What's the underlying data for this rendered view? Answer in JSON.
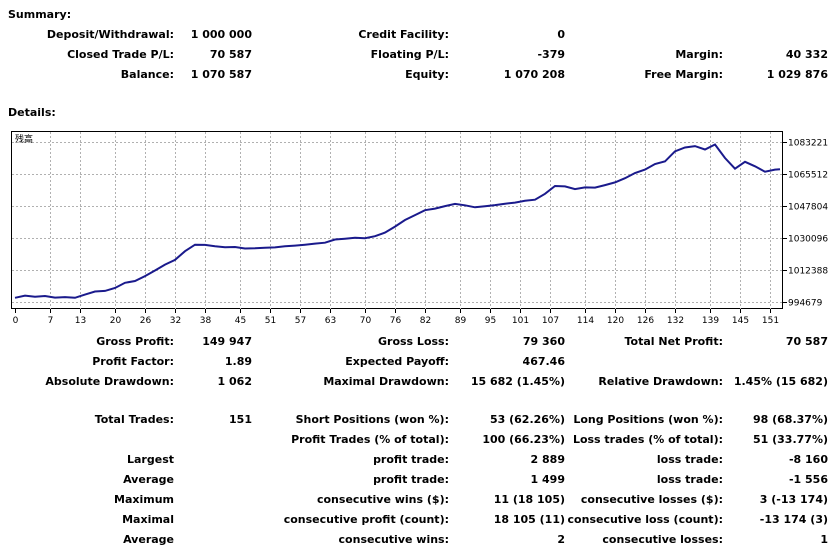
{
  "summary": {
    "title": "Summary:",
    "rows": [
      [
        {
          "label": "Deposit/Withdrawal:",
          "value": "1 000 000"
        },
        {
          "label": "Credit Facility:",
          "value": "0"
        },
        null
      ],
      [
        {
          "label": "Closed Trade P/L:",
          "value": "70 587"
        },
        {
          "label": "Floating P/L:",
          "value": "-379"
        },
        {
          "label": "Margin:",
          "value": "40 332"
        }
      ],
      [
        {
          "label": "Balance:",
          "value": "1 070 587"
        },
        {
          "label": "Equity:",
          "value": "1 070 208"
        },
        {
          "label": "Free Margin:",
          "value": "1 029 876"
        }
      ]
    ]
  },
  "details": {
    "title": "Details:"
  },
  "chart_data": {
    "type": "line",
    "legend": "残高",
    "x_ticks": [
      0,
      7,
      13,
      20,
      26,
      32,
      38,
      45,
      51,
      57,
      63,
      70,
      76,
      82,
      89,
      95,
      101,
      107,
      114,
      120,
      126,
      132,
      139,
      145,
      151
    ],
    "y_ticks": [
      994679,
      1012388,
      1030096,
      1047804,
      1065512,
      1083221
    ],
    "xlim": [
      0,
      153
    ],
    "ylim": [
      991000,
      1089000
    ],
    "color": "#1a1a8c",
    "series": [
      {
        "x": [
          0,
          2,
          4,
          6,
          8,
          10,
          12,
          14,
          16,
          18,
          20,
          22,
          24,
          26,
          28,
          30,
          32,
          34,
          36,
          38,
          40,
          42,
          44,
          46,
          48,
          50,
          52,
          54,
          56,
          58,
          60,
          62,
          64,
          66,
          68,
          70,
          72,
          74,
          76,
          78,
          80,
          82,
          84,
          86,
          88,
          90,
          92,
          94,
          96,
          98,
          100,
          102,
          104,
          106,
          108,
          110,
          112,
          114,
          116,
          118,
          120,
          122,
          124,
          126,
          128,
          130,
          132,
          134,
          136,
          138,
          140,
          142,
          144,
          146,
          148,
          150,
          152,
          153
        ],
        "y": [
          997200,
          998400,
          997800,
          998200,
          997300,
          997600,
          997200,
          999000,
          1000700,
          1001000,
          1002600,
          1005500,
          1006500,
          1009200,
          1012300,
          1015600,
          1018200,
          1023000,
          1026600,
          1026500,
          1025700,
          1025200,
          1025300,
          1024500,
          1024600,
          1024900,
          1025100,
          1025700,
          1026100,
          1026600,
          1027200,
          1027700,
          1029500,
          1029900,
          1030500,
          1030200,
          1031300,
          1033300,
          1036600,
          1040300,
          1043000,
          1045700,
          1046600,
          1048000,
          1049200,
          1048400,
          1047300,
          1047900,
          1048500,
          1049300,
          1049900,
          1050900,
          1051500,
          1054800,
          1059100,
          1058900,
          1057400,
          1058300,
          1058200,
          1059600,
          1061100,
          1063400,
          1066300,
          1068200,
          1071300,
          1072700,
          1078300,
          1080400,
          1081200,
          1079300,
          1082100,
          1074600,
          1068700,
          1072500,
          1070000,
          1067000,
          1068200,
          1068400
        ]
      }
    ]
  },
  "stats": {
    "row1": [
      {
        "label": "Gross Profit:",
        "value": "149 947"
      },
      {
        "label": "Gross Loss:",
        "value": "79 360"
      },
      {
        "label": "Total Net Profit:",
        "value": "70 587"
      }
    ],
    "row2": [
      {
        "label": "Profit Factor:",
        "value": "1.89"
      },
      {
        "label": "Expected Payoff:",
        "value": "467.46"
      }
    ],
    "row3": [
      {
        "label": "Absolute Drawdown:",
        "value": "1 062"
      },
      {
        "label": "Maximal Drawdown:",
        "value": "15 682 (1.45%)"
      },
      {
        "label": "Relative Drawdown:",
        "value": "1.45% (15 682)"
      }
    ],
    "trades": {
      "label": "Total Trades:",
      "value": "151"
    },
    "short_positions": {
      "label": "Short Positions (won %):",
      "value": "53 (62.26%)"
    },
    "long_positions": {
      "label": "Long Positions (won %):",
      "value": "98 (68.37%)"
    },
    "profit_trades": {
      "label": "Profit Trades (% of total):",
      "value": "100 (66.23%)"
    },
    "loss_trades": {
      "label": "Loss trades (% of total):",
      "value": "51 (33.77%)"
    },
    "rows": [
      {
        "left": "Largest",
        "mid_label": "profit trade:",
        "mid_value": "2 889",
        "right_label": "loss trade:",
        "right_value": "-8 160"
      },
      {
        "left": "Average",
        "mid_label": "profit trade:",
        "mid_value": "1 499",
        "right_label": "loss trade:",
        "right_value": "-1 556"
      },
      {
        "left": "Maximum",
        "mid_label": "consecutive wins ($):",
        "mid_value": "11 (18 105)",
        "right_label": "consecutive losses ($):",
        "right_value": "3 (-13 174)"
      },
      {
        "left": "Maximal",
        "mid_label": "consecutive profit (count):",
        "mid_value": "18 105 (11)",
        "right_label": "consecutive loss (count):",
        "right_value": "-13 174 (3)"
      },
      {
        "left": "Average",
        "mid_label": "consecutive wins:",
        "mid_value": "2",
        "right_label": "consecutive losses:",
        "right_value": "1"
      }
    ]
  }
}
